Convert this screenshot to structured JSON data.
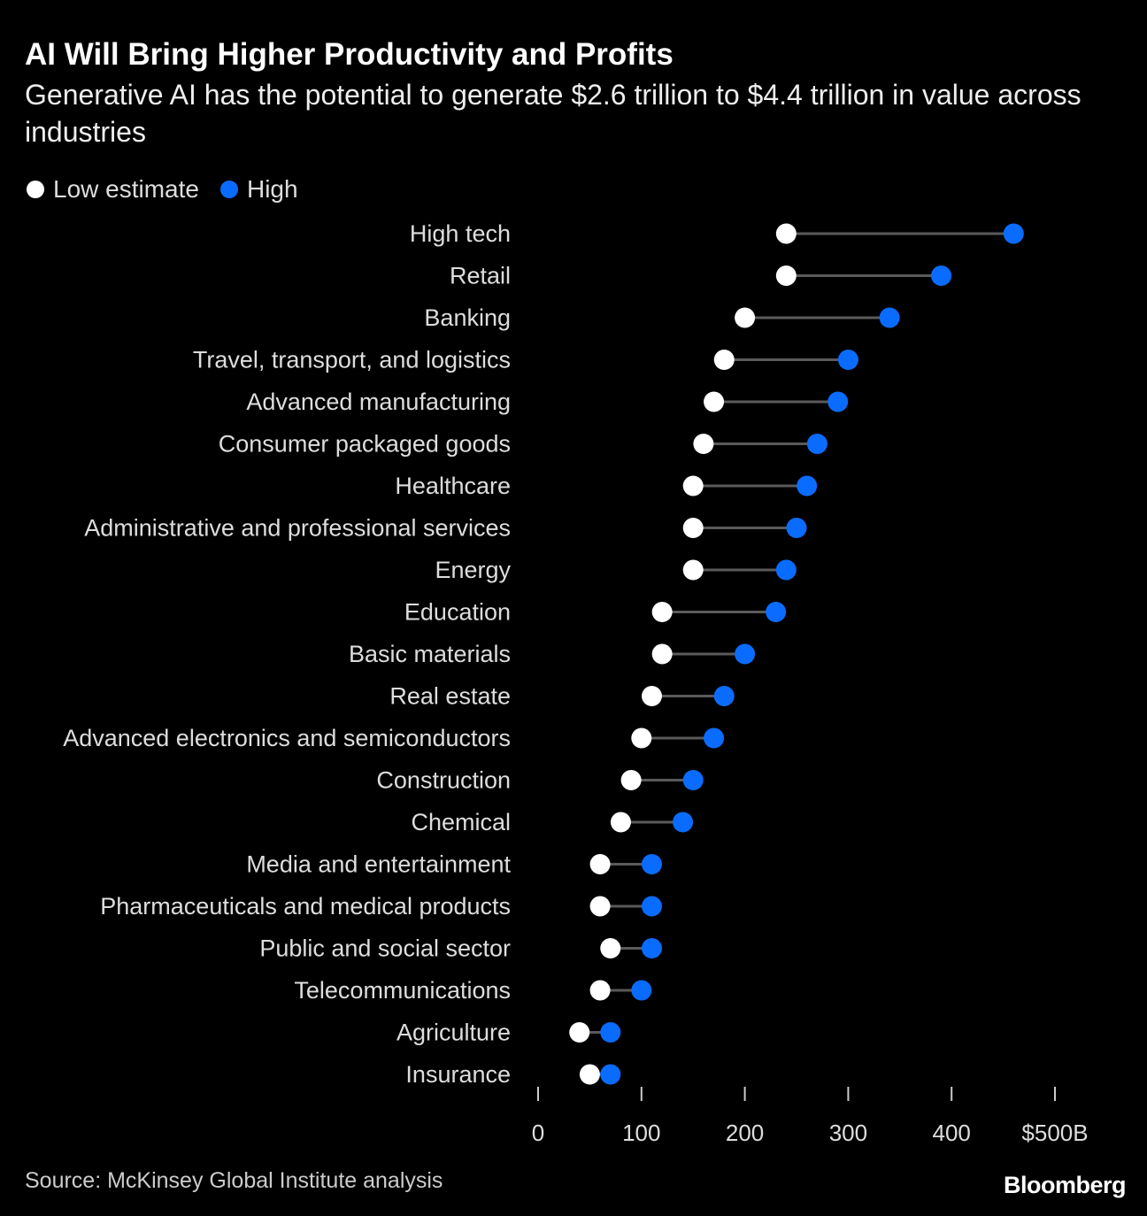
{
  "chart_data": {
    "type": "dumbbell",
    "title": "AI Will Bring Higher Productivity and Profits",
    "subtitle": "Generative AI has the potential to generate $2.6 trillion to $4.4 trillion in value across industries",
    "legend": {
      "placement": "top-left",
      "low_label": "Low estimate",
      "high_label": "High"
    },
    "colors": {
      "low": "#ffffff",
      "high": "#0a6cff",
      "connector": "#5a5a5a",
      "background": "#000000"
    },
    "categories": [
      "High tech",
      "Retail",
      "Banking",
      "Travel, transport, and logistics",
      "Advanced manufacturing",
      "Consumer packaged goods",
      "Healthcare",
      "Administrative and professional services",
      "Energy",
      "Education",
      "Basic materials",
      "Real estate",
      "Advanced electronics and semiconductors",
      "Construction",
      "Chemical",
      "Media and entertainment",
      "Pharmaceuticals and medical products",
      "Public and social sector",
      "Telecommunications",
      "Agriculture",
      "Insurance"
    ],
    "series": [
      {
        "name": "Low estimate",
        "values": [
          240,
          240,
          200,
          180,
          170,
          160,
          150,
          150,
          150,
          120,
          120,
          110,
          100,
          90,
          80,
          60,
          60,
          70,
          60,
          40,
          50
        ]
      },
      {
        "name": "High",
        "values": [
          460,
          390,
          340,
          300,
          290,
          270,
          260,
          250,
          240,
          230,
          200,
          180,
          170,
          150,
          140,
          110,
          110,
          110,
          100,
          70,
          70
        ]
      }
    ],
    "xlim": [
      0,
      500
    ],
    "xticks": [
      0,
      100,
      200,
      300,
      400,
      500
    ],
    "xtick_labels": [
      "0",
      "100",
      "200",
      "300",
      "400",
      "$500B"
    ],
    "grid": false
  },
  "footer": {
    "source": "Source: McKinsey Global Institute analysis",
    "brand": "Bloomberg"
  }
}
